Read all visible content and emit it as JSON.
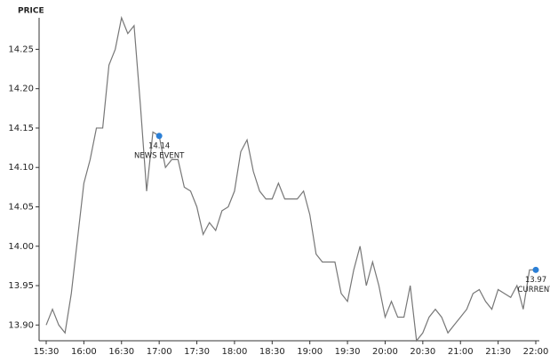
{
  "chart_data": {
    "type": "line",
    "y_axis_label": "PRICE",
    "x": [
      "15:30",
      "15:35",
      "15:40",
      "15:45",
      "15:50",
      "15:55",
      "16:00",
      "16:05",
      "16:10",
      "16:15",
      "16:20",
      "16:25",
      "16:30",
      "16:35",
      "16:40",
      "16:45",
      "16:50",
      "16:55",
      "17:00",
      "17:05",
      "17:10",
      "17:15",
      "17:20",
      "17:25",
      "17:30",
      "17:35",
      "17:40",
      "17:45",
      "17:50",
      "17:55",
      "18:00",
      "18:05",
      "18:10",
      "18:15",
      "18:20",
      "18:25",
      "18:30",
      "18:35",
      "18:40",
      "18:45",
      "18:50",
      "18:55",
      "19:00",
      "19:05",
      "19:10",
      "19:15",
      "19:20",
      "19:25",
      "19:30",
      "19:35",
      "19:40",
      "19:45",
      "19:50",
      "19:55",
      "20:00",
      "20:05",
      "20:10",
      "20:15",
      "20:20",
      "20:25",
      "20:30",
      "20:35",
      "20:40",
      "20:45",
      "20:50",
      "20:55",
      "21:00",
      "21:05",
      "21:10",
      "21:15",
      "21:20",
      "21:25",
      "21:30",
      "21:35",
      "21:40",
      "21:45",
      "21:50",
      "21:55",
      "22:00"
    ],
    "values": [
      13.9,
      13.92,
      13.9,
      13.89,
      13.94,
      14.01,
      14.08,
      14.11,
      14.15,
      14.15,
      14.23,
      14.25,
      14.29,
      14.27,
      14.28,
      14.18,
      14.07,
      14.145,
      14.14,
      14.1,
      14.11,
      14.11,
      14.075,
      14.07,
      14.05,
      14.015,
      14.03,
      14.02,
      14.045,
      14.05,
      14.07,
      14.12,
      14.135,
      14.095,
      14.07,
      14.06,
      14.06,
      14.08,
      14.06,
      14.06,
      14.06,
      14.07,
      14.04,
      13.99,
      13.98,
      13.98,
      13.98,
      13.94,
      13.93,
      13.97,
      14.0,
      13.95,
      13.98,
      13.95,
      13.91,
      13.93,
      13.91,
      13.91,
      13.95,
      13.88,
      13.89,
      13.91,
      13.92,
      13.91,
      13.89,
      13.9,
      13.91,
      13.92,
      13.94,
      13.945,
      13.93,
      13.92,
      13.945,
      13.94,
      13.935,
      13.95,
      13.92,
      13.97,
      13.97
    ],
    "color": "#777777",
    "xticks": [
      "15:30",
      "16:00",
      "16:30",
      "17:00",
      "17:30",
      "18:00",
      "18:30",
      "19:00",
      "19:30",
      "20:00",
      "20:30",
      "21:00",
      "21:30",
      "22:00"
    ],
    "ylim": [
      13.88,
      14.29
    ],
    "yticks": [
      {
        "value": 13.9,
        "label": "13.90"
      },
      13.95,
      {
        "value": 14.0,
        "label": "14.00"
      },
      14.05,
      {
        "value": 14.1,
        "label": "14.10"
      },
      14.15,
      {
        "value": 14.2,
        "label": "14.20"
      },
      14.25
    ],
    "annotations": [
      {
        "x": "17:00",
        "value": 14.14,
        "text": "NEWS EVENT"
      },
      {
        "x": "22:00",
        "value": 13.97,
        "text": "CURRENT"
      }
    ],
    "annotation_color": "#2b7fd6"
  }
}
